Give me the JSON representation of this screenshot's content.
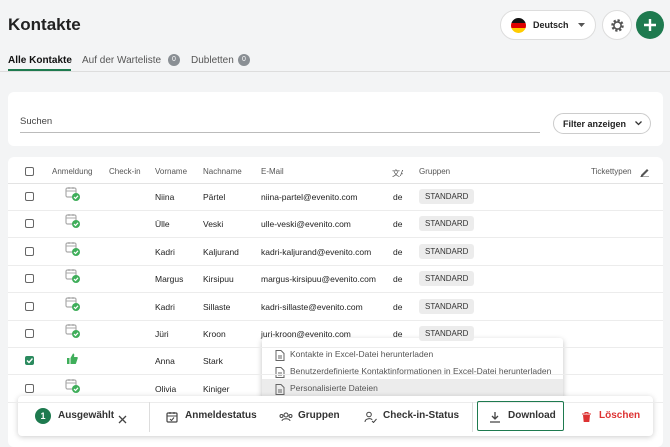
{
  "header": {
    "title": "Kontakte",
    "language": "Deutsch"
  },
  "tabs": [
    {
      "label": "Alle Kontakte"
    },
    {
      "label": "Auf der Warteliste",
      "badge": "0"
    },
    {
      "label": "Dubletten",
      "badge": "0"
    }
  ],
  "search": {
    "placeholder": "Suchen",
    "filter_button": "Filter anzeigen"
  },
  "table": {
    "headers": [
      "Anmeldung",
      "Check-in",
      "Vorname",
      "Nachname",
      "E-Mail",
      "Gruppen",
      "Tickettypen"
    ],
    "rows": [
      {
        "first": "Niina",
        "last": "Pärtel",
        "email": "niina-partel@evenito.com",
        "lang": "de",
        "group": "STANDARD"
      },
      {
        "first": "Ülle",
        "last": "Veski",
        "email": "ulle-veski@evenito.com",
        "lang": "de",
        "group": "STANDARD"
      },
      {
        "first": "Kadri",
        "last": "Kaljurand",
        "email": "kadri-kaljurand@evenito.com",
        "lang": "de",
        "group": "STANDARD"
      },
      {
        "first": "Margus",
        "last": "Kirsipuu",
        "email": "margus-kirsipuu@evenito.com",
        "lang": "de",
        "group": "STANDARD"
      },
      {
        "first": "Kadri",
        "last": "Sillaste",
        "email": "kadri-sillaste@evenito.com",
        "lang": "de",
        "group": "STANDARD"
      },
      {
        "first": "Jüri",
        "last": "Kroon",
        "email": "juri-kroon@evenito.com",
        "lang": "de",
        "group": "STANDARD"
      },
      {
        "first": "Anna",
        "last": "Stark",
        "selected": true
      },
      {
        "first": "Olivia",
        "last": "Kiniger"
      }
    ]
  },
  "download_menu": [
    "Kontakte in Excel-Datei herunterladen",
    "Benutzerdefinierte Kontaktinformationen in Excel-Datei herunterladen",
    "Personalisierte Dateien"
  ],
  "action_bar": {
    "count": "1",
    "selected_label": "Ausgewählt",
    "actions": [
      "Anmeldestatus",
      "Gruppen",
      "Check-in-Status",
      "Download",
      "Löschen"
    ]
  }
}
